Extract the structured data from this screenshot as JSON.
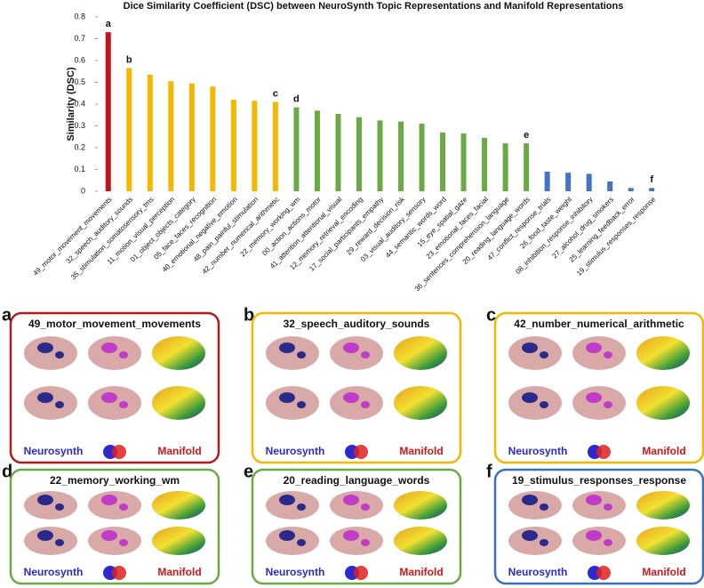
{
  "chart_data": {
    "type": "bar",
    "title": "Dice Similarity Coefficient (DSC) between NeuroSynth Topic Representations and Manifold Representations",
    "y_label": "Similarity (DSC)",
    "categories": [
      "49_motor_movement_movements",
      "32_speech_auditory_sounds",
      "35_stimulation_somatosensory_tms",
      "11_motion_visual_perception",
      "01_object_objects_category",
      "05_face_faces_recognition",
      "40_emotional_negative_emotion",
      "48_pain_painful_stimulation",
      "42_number_numerical_arithmetic",
      "22_memory_working_wm",
      "00_action_actions_motor",
      "41_attention_attentional_visual",
      "12_memory_retrieval_encoding",
      "17_social_participants_empathy",
      "29_reward_decision_risk",
      "03_visual_auditory_sensory",
      "44_semantic_words_word",
      "15_eye_spatial_gaze",
      "23_emotional_faces_facial",
      "36_sentences_comprehension_language",
      "20_reading_language_words",
      "47_conflict_response_trials",
      "26_food_taste_weight",
      "08_inhibition_response_inhibitory",
      "27_alcohol_drug_smokers",
      "25_learning_feedback_error",
      "19_stimulus_responses_response"
    ],
    "values": [
      0.73,
      0.565,
      0.535,
      0.505,
      0.495,
      0.48,
      0.42,
      0.415,
      0.41,
      0.385,
      0.37,
      0.355,
      0.34,
      0.325,
      0.32,
      0.31,
      0.27,
      0.265,
      0.245,
      0.22,
      0.22,
      0.09,
      0.085,
      0.08,
      0.045,
      0.015,
      0.015
    ],
    "colors": [
      "#c0141c",
      "#f5b800",
      "#f5b800",
      "#f5b800",
      "#f5b800",
      "#f5b800",
      "#f5b800",
      "#f5b800",
      "#f5b800",
      "#6aaa44",
      "#6aaa44",
      "#6aaa44",
      "#6aaa44",
      "#6aaa44",
      "#6aaa44",
      "#6aaa44",
      "#6aaa44",
      "#6aaa44",
      "#6aaa44",
      "#6aaa44",
      "#6aaa44",
      "#4472c4",
      "#4472c4",
      "#4472c4",
      "#4472c4",
      "#4472c4",
      "#4472c4"
    ],
    "annotations": [
      "a",
      "b",
      null,
      null,
      null,
      null,
      null,
      null,
      "c",
      "d",
      null,
      null,
      null,
      null,
      null,
      null,
      null,
      null,
      null,
      null,
      "e",
      null,
      null,
      null,
      null,
      null,
      "f"
    ],
    "ylim": [
      0,
      0.8
    ],
    "yticks": [
      0,
      0.1,
      0.2,
      0.3,
      0.4,
      0.5,
      0.6,
      0.7,
      0.8
    ]
  },
  "panels": [
    {
      "letter": "a",
      "title": "49_motor_movement_movements",
      "left": "Neurosynth",
      "right": "Manifold",
      "color": "#b01c1c"
    },
    {
      "letter": "b",
      "title": "32_speech_auditory_sounds",
      "left": "Neurosynth",
      "right": "Manifold",
      "color": "#f5b800"
    },
    {
      "letter": "c",
      "title": "42_number_numerical_arithmetic",
      "left": "Neurosynth",
      "right": "Manifold",
      "color": "#f5b800"
    },
    {
      "letter": "d",
      "title": "22_memory_working_wm",
      "left": "Neurosynth",
      "right": "Manifold",
      "color": "#6aaa44"
    },
    {
      "letter": "e",
      "title": "20_reading_language_words",
      "left": "Neurosynth",
      "right": "Manifold",
      "color": "#6aaa44"
    },
    {
      "letter": "f",
      "title": "19_stimulus_responses_response",
      "left": "Neurosynth",
      "right": "Manifold",
      "color": "#3a6fc0"
    }
  ]
}
